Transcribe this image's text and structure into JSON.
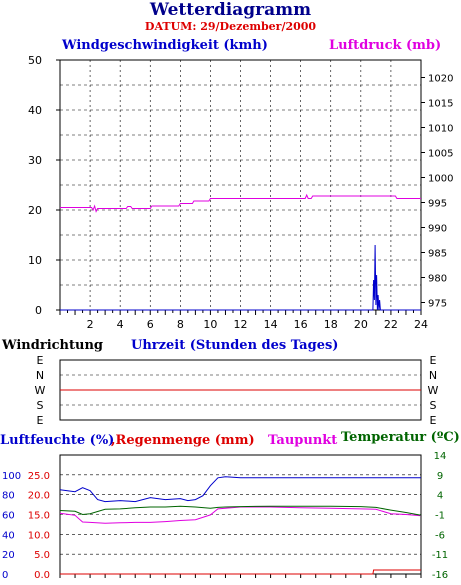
{
  "header": {
    "title": "Wetterdiagramm",
    "subtitle": "DATUM: 29/Dezember/2000"
  },
  "colors": {
    "wind": "#0000cc",
    "pressure": "#e000e0",
    "winddir": "#dd0000",
    "humidity": "#0000cc",
    "rain": "#dd0000",
    "dew": "#e000e0",
    "temp": "#006400",
    "axis": "#000000",
    "grid": "#000000"
  },
  "chart_data": [
    {
      "type": "line",
      "title": "",
      "labels": {
        "left": "Windgeschwindigkeit (kmh)",
        "right": "Luftdruck (mb)",
        "x": "Uhrzeit (Stunden des Tages)"
      },
      "x_ticks": [
        "2",
        "4",
        "6",
        "8",
        "10",
        "12",
        "14",
        "16",
        "18",
        "20",
        "22",
        "24"
      ],
      "xlim": [
        0,
        24
      ],
      "y_left": {
        "ticks": [
          "0",
          "10",
          "20",
          "30",
          "40",
          "50"
        ],
        "lim": [
          0,
          50
        ]
      },
      "y_right": {
        "ticks": [
          "975",
          "980",
          "985",
          "990",
          "995",
          "1000",
          "1005",
          "1010",
          "1015",
          "1020"
        ],
        "lim": [
          973.5,
          1023.5
        ]
      },
      "grid": true,
      "series": [
        {
          "name": "Windgeschwindigkeit",
          "axis": "left",
          "x": [
            0,
            20.8,
            20.85,
            20.9,
            20.95,
            21.0,
            21.05,
            21.1,
            21.15,
            21.2,
            21.25,
            21.3,
            24
          ],
          "y": [
            0,
            0,
            6,
            2,
            13,
            1,
            7,
            0,
            3,
            0,
            2,
            0,
            0
          ]
        },
        {
          "name": "Luftdruck",
          "axis": "right",
          "x": [
            0,
            2.1,
            2.2,
            2.3,
            2.4,
            2.5,
            4.4,
            4.5,
            4.7,
            4.8,
            6.0,
            6.1,
            7.9,
            8.0,
            8.8,
            8.9,
            9.9,
            10.0,
            16.3,
            16.4,
            16.5,
            16.7,
            16.8,
            22.3,
            22.4,
            24
          ],
          "y": [
            994.0,
            994.0,
            993.5,
            994.3,
            993.2,
            993.8,
            993.8,
            994.2,
            994.2,
            993.8,
            993.8,
            994.3,
            994.3,
            994.8,
            994.8,
            995.3,
            995.3,
            995.8,
            995.8,
            996.5,
            995.8,
            995.8,
            996.3,
            996.3,
            995.8,
            995.8
          ]
        }
      ]
    },
    {
      "type": "line",
      "title": "",
      "labels": {
        "left": "Windrichtung"
      },
      "categories": [
        "E",
        "N",
        "W",
        "S",
        "E"
      ],
      "grid": true,
      "series": [
        {
          "name": "Windrichtung",
          "x": [
            0,
            24
          ],
          "y": [
            "W",
            "W"
          ]
        }
      ]
    },
    {
      "type": "line",
      "title": "",
      "labels": {
        "humidity": "Luftfeuchte (%)",
        "rain": "Regenmenge (mm)",
        "dew": "Taupunkt",
        "temp": "Temperatur (ºC)"
      },
      "y_humidity_ticks": [
        "0",
        "20",
        "40",
        "60",
        "80",
        "100"
      ],
      "y_rain_ticks": [
        "0.0",
        "5.0",
        "10.0",
        "15.0",
        "20.0",
        "25.0"
      ],
      "y_temp_ticks": [
        "-16",
        "-11",
        "-6",
        "-1",
        "4",
        "9",
        "14"
      ],
      "xlim": [
        0,
        24
      ],
      "grid": true,
      "series": [
        {
          "name": "Luftfeuchte",
          "unit": "%",
          "x": [
            0,
            1.0,
            1.5,
            2.0,
            2.5,
            3.0,
            4.0,
            5.0,
            6.0,
            7.0,
            8.0,
            8.5,
            9.0,
            9.5,
            10.0,
            10.5,
            11.0,
            12.0,
            13.0,
            14.0,
            16.0,
            18.0,
            20.0,
            22.0,
            24.0
          ],
          "y": [
            85,
            83,
            87,
            84,
            75,
            73,
            74,
            73,
            77,
            75,
            76,
            74,
            75,
            79,
            89,
            97,
            98,
            97,
            97,
            97,
            97,
            97,
            97,
            97,
            97
          ]
        },
        {
          "name": "Regenmenge",
          "unit": "mm",
          "x": [
            0,
            20.8,
            20.85,
            24
          ],
          "y": [
            0,
            0,
            1.0,
            1.0
          ]
        },
        {
          "name": "Taupunkt",
          "unit": "°C",
          "x": [
            0,
            1.0,
            1.5,
            2.0,
            3.0,
            4.0,
            5.0,
            6.0,
            7.0,
            8.0,
            9.0,
            10.0,
            10.5,
            11.0,
            12.0,
            14.0,
            16.0,
            18.0,
            20.0,
            21.0,
            22.0,
            23.0,
            24.0
          ],
          "y": [
            -0.7,
            -1.2,
            -2.9,
            -3.0,
            -3.2,
            -3.1,
            -3.0,
            -3.0,
            -2.8,
            -2.5,
            -2.3,
            -1.1,
            0.4,
            0.6,
            0.9,
            0.9,
            0.7,
            0.6,
            0.4,
            0.3,
            -0.8,
            -1.0,
            -1.3
          ]
        },
        {
          "name": "Temperatur",
          "unit": "°C",
          "x": [
            0,
            1.0,
            1.5,
            2.0,
            3.0,
            4.0,
            5.0,
            6.0,
            7.0,
            8.0,
            9.0,
            10.0,
            10.5,
            11.0,
            12.0,
            14.0,
            16.0,
            18.0,
            20.0,
            21.0,
            22.0,
            23.0,
            24.0
          ],
          "y": [
            0.0,
            -0.2,
            -1.0,
            -0.8,
            0.3,
            0.4,
            0.7,
            0.9,
            0.9,
            1.1,
            0.9,
            0.6,
            0.8,
            0.9,
            1.0,
            1.1,
            1.1,
            1.1,
            1.0,
            0.8,
            0.1,
            -0.5,
            -1.2
          ]
        }
      ]
    }
  ]
}
